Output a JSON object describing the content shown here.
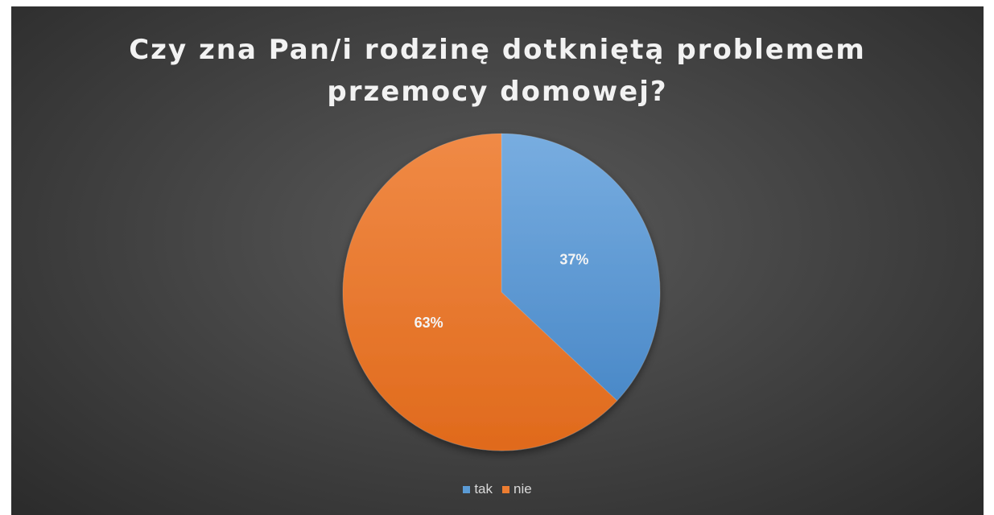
{
  "chart_data": {
    "type": "pie",
    "title_lines": [
      "Czy zna Pan/i rodzinę dotkniętą problemem",
      "przemocy domowej?"
    ],
    "categories": [
      "tak",
      "nie"
    ],
    "values": [
      37,
      63
    ],
    "labels": [
      "37%",
      "63%"
    ],
    "colors": [
      "#5b9bd5",
      "#ed7d31"
    ],
    "legend_position": "bottom"
  }
}
